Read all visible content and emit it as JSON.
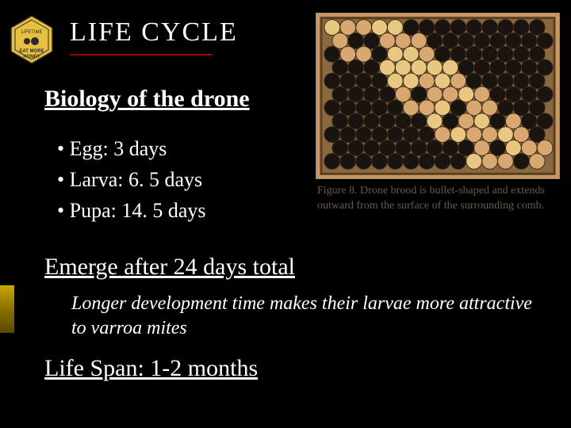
{
  "title": "LIFE  CYCLE",
  "title_color": "#e8e8e8",
  "underline_color": "#a00000",
  "subtitle": "Biology of the drone",
  "bullets": [
    "Egg:  3 days",
    "Larva:  6. 5 days",
    "Pupa:  14. 5 days"
  ],
  "emerge": "Emerge after 24 days total",
  "note": "Longer development time makes their larvae more attractive to varroa mites",
  "lifespan": "Life Span:  1-2 months",
  "figure_caption": "Figure 8. Drone brood is bullet-shaped and extends outward from the surface of the surrounding comb.",
  "badge_text_top": "EAT MORE",
  "badge_text_bottom": "HONEY",
  "badge_fill": "#e8c040",
  "badge_stroke": "#2a2a2a",
  "comb_colors": {
    "background": "#c89860",
    "cell_dark": "#1a1410",
    "cell_light": "#d8a870",
    "highlight": "#e8c880"
  }
}
